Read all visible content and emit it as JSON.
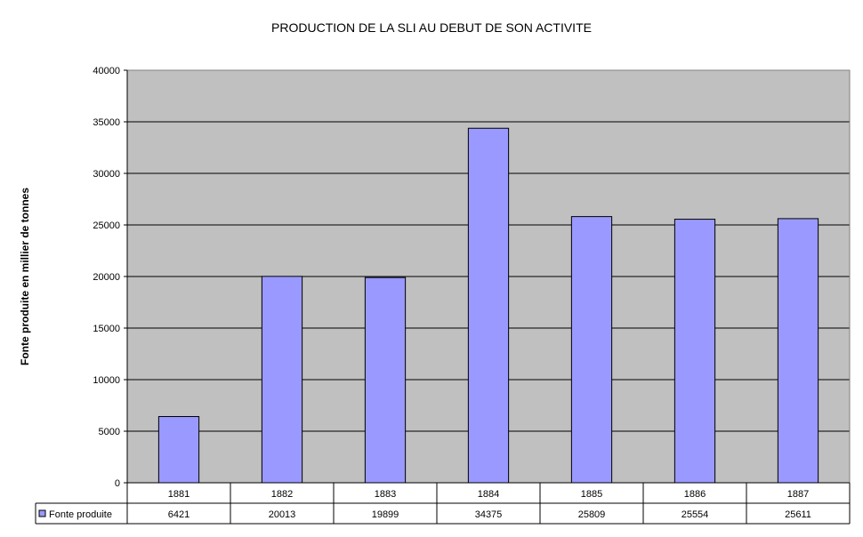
{
  "chart_data": {
    "type": "bar",
    "title": "PRODUCTION DE LA SLI AU DEBUT DE SON ACTIVITE",
    "xlabel": "",
    "ylabel": "Fonte produite en millier de tonnes",
    "categories": [
      "1881",
      "1882",
      "1883",
      "1884",
      "1885",
      "1886",
      "1887"
    ],
    "series": [
      {
        "name": "Fonte produite",
        "values": [
          6421,
          20013,
          19899,
          34375,
          25809,
          25554,
          25611
        ],
        "color": "#9999ff"
      }
    ],
    "ylim": [
      0,
      40000
    ],
    "yticks": [
      0,
      5000,
      10000,
      15000,
      20000,
      25000,
      30000,
      35000,
      40000
    ],
    "grid": true,
    "plot_background": "#c0c0c0",
    "legend": "data-table",
    "data_table": true
  }
}
